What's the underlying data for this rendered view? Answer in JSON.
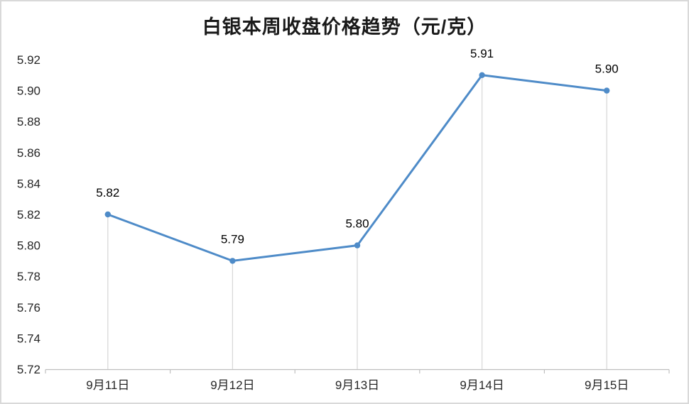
{
  "chart_data": {
    "type": "line",
    "title": "白银本周收盘价格趋势（元/克）",
    "categories": [
      "9月11日",
      "9月12日",
      "9月13日",
      "9月14日",
      "9月15日"
    ],
    "values": [
      5.82,
      5.79,
      5.8,
      5.91,
      5.9
    ],
    "data_labels": [
      "5.82",
      "5.79",
      "5.80",
      "5.91",
      "5.90"
    ],
    "xlabel": "",
    "ylabel": "",
    "ylim": [
      5.72,
      5.92
    ],
    "ytick_step": 0.02,
    "ytick_labels": [
      "5.72",
      "5.74",
      "5.76",
      "5.78",
      "5.80",
      "5.82",
      "5.84",
      "5.86",
      "5.88",
      "5.90",
      "5.92"
    ],
    "grid": false,
    "legend": false,
    "drop_lines": true,
    "colors": {
      "line": "#4e8bc8",
      "marker": "#4e8bc8",
      "drop_line": "#d9d9d9",
      "axis": "#bfbfbf",
      "tick_text": "#262626",
      "data_label_text": "#000000",
      "frame_border": "#d9d9d9"
    }
  }
}
